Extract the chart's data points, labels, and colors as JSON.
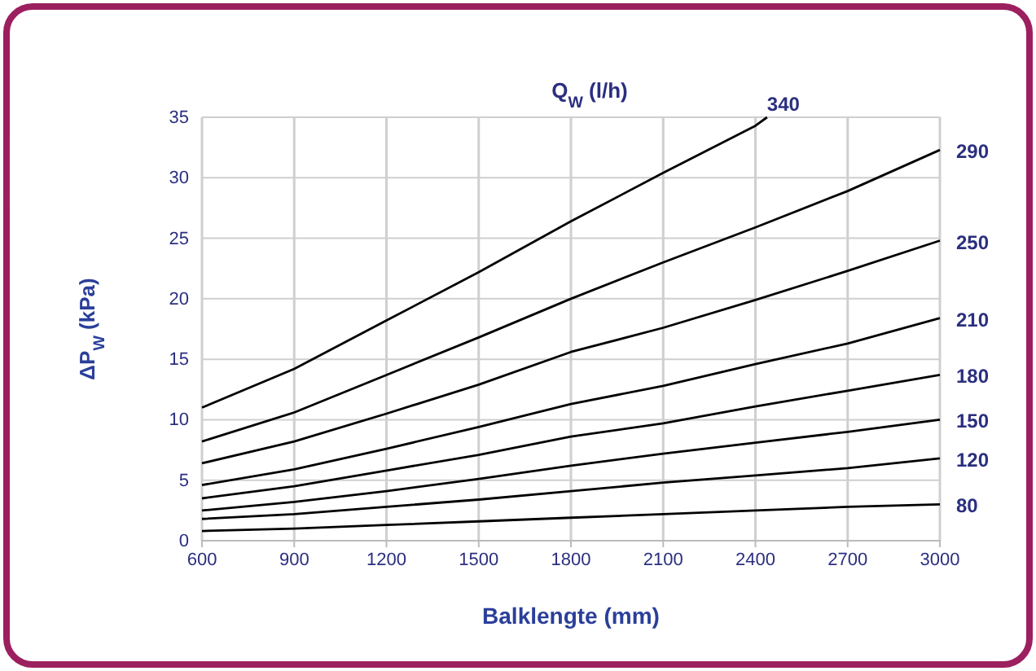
{
  "chart_data": {
    "type": "line",
    "legend_title": "Q$_{W}$ (l/h)",
    "xlabel": "Balklengte (mm)",
    "ylabel": "ΔP$_{W}$ (kPa)",
    "xlim": [
      600,
      3000
    ],
    "xticks": [
      600,
      900,
      1200,
      1500,
      1800,
      2100,
      2400,
      2700,
      3000
    ],
    "ylim": [
      0,
      35
    ],
    "yticks": [
      0,
      5,
      10,
      15,
      20,
      25,
      30,
      35
    ],
    "grid": true,
    "legend": "right",
    "marker": "none",
    "line_style": "solid",
    "x": [
      600,
      900,
      1200,
      1500,
      1800,
      2100,
      2400,
      2700,
      3000
    ],
    "series": [
      {
        "name": "340",
        "color": "#000000",
        "x": [
          600,
          900,
          1200,
          1500,
          1800,
          2100,
          2400,
          2438
        ],
        "values": [
          11.0,
          14.2,
          18.2,
          22.2,
          26.4,
          30.4,
          34.3,
          35.0
        ]
      },
      {
        "name": "290",
        "color": "#000000",
        "values": [
          8.2,
          10.6,
          13.7,
          16.8,
          20.0,
          23.0,
          25.9,
          28.9,
          32.3
        ]
      },
      {
        "name": "250",
        "color": "#000000",
        "values": [
          6.4,
          8.2,
          10.5,
          12.9,
          15.6,
          17.6,
          19.9,
          22.3,
          24.8
        ]
      },
      {
        "name": "210",
        "color": "#000000",
        "values": [
          4.6,
          5.9,
          7.6,
          9.4,
          11.3,
          12.8,
          14.6,
          16.3,
          18.4
        ]
      },
      {
        "name": "180",
        "color": "#000000",
        "values": [
          3.5,
          4.5,
          5.8,
          7.1,
          8.6,
          9.7,
          11.1,
          12.4,
          13.7
        ]
      },
      {
        "name": "150",
        "color": "#000000",
        "values": [
          2.5,
          3.2,
          4.1,
          5.1,
          6.2,
          7.2,
          8.1,
          9.0,
          10.0
        ]
      },
      {
        "name": "120",
        "color": "#000000",
        "values": [
          1.8,
          2.2,
          2.8,
          3.4,
          4.1,
          4.8,
          5.4,
          6.0,
          6.8
        ]
      },
      {
        "name": "80",
        "color": "#000000",
        "values": [
          0.8,
          1.0,
          1.3,
          1.6,
          1.9,
          2.2,
          2.5,
          2.8,
          3.0
        ]
      }
    ]
  }
}
